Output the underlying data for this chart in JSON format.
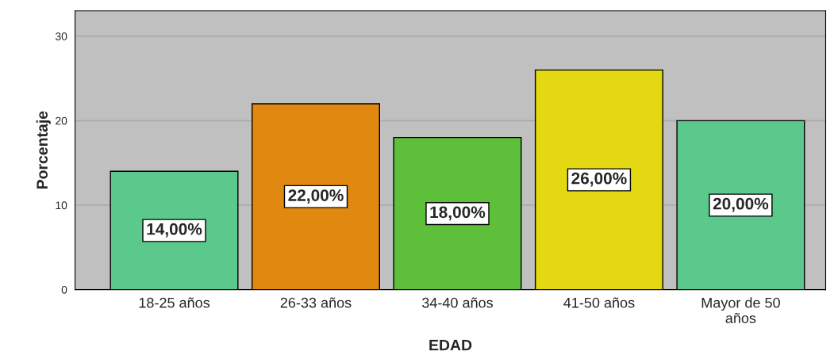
{
  "chart_data": {
    "type": "bar",
    "xlabel": "EDAD",
    "ylabel": "Porcentaje",
    "categories": [
      "18-25 años",
      "26-33 años",
      "34-40 años",
      "41-50 años",
      "Mayor de 50\naños"
    ],
    "values": [
      14,
      22,
      18,
      26,
      20
    ],
    "colors": [
      "#5bc98b",
      "#e0880f",
      "#5ec03a",
      "#e3d811",
      "#5bc98b"
    ],
    "value_labels": [
      "14,00%",
      "22,00%",
      "18,00%",
      "26,00%",
      "20,00%"
    ],
    "ylim": [
      0,
      33
    ],
    "yticks": [
      0,
      10,
      20,
      30
    ],
    "grid": "y"
  }
}
